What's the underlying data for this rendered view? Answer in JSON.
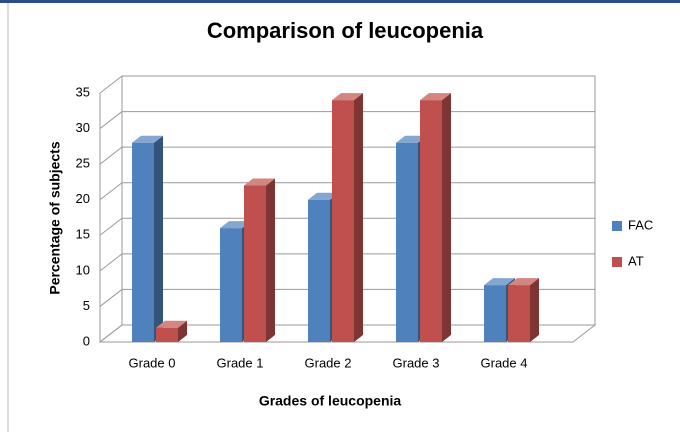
{
  "chart_data": {
    "type": "bar",
    "title": "Comparison of leucopenia",
    "xlabel": "Grades of leucopenia",
    "ylabel": "Percentage of subjects",
    "categories": [
      "Grade 0",
      "Grade 1",
      "Grade 2",
      "Grade 3",
      "Grade 4"
    ],
    "series": [
      {
        "name": "FAC",
        "color": "#4f81bd",
        "values": [
          28,
          16,
          20,
          28,
          8
        ]
      },
      {
        "name": "AT",
        "color": "#c0504d",
        "values": [
          2,
          22,
          34,
          34,
          8
        ]
      }
    ],
    "ylim": [
      0,
      35
    ],
    "yticks": [
      0,
      5,
      10,
      15,
      20,
      25,
      30,
      35
    ],
    "grid": true,
    "legend": "right"
  }
}
